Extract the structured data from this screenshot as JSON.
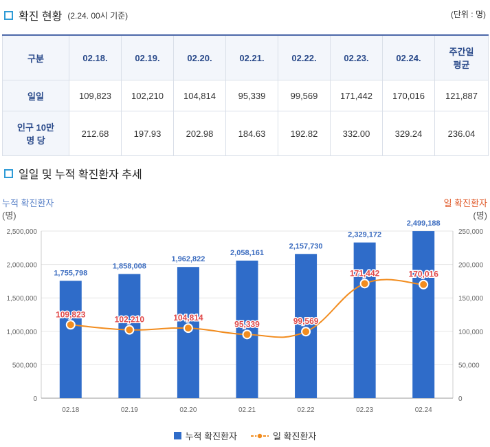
{
  "section1": {
    "title": "확진 현황",
    "subtitle": "(2.24. 00시 기준)",
    "unit": "(단위 : 명)"
  },
  "table": {
    "headers": [
      "구분",
      "02.18.",
      "02.19.",
      "02.20.",
      "02.21.",
      "02.22.",
      "02.23.",
      "02.24.",
      "주간일\n평균"
    ],
    "rows": [
      {
        "label": "일일",
        "cells": [
          "109,823",
          "102,210",
          "104,814",
          "95,339",
          "99,569",
          "171,442",
          "170,016",
          "121,887"
        ]
      },
      {
        "label": "인구 10만\n명 당",
        "cells": [
          "212.68",
          "197.93",
          "202.98",
          "184.63",
          "192.82",
          "332.00",
          "329.24",
          "236.04"
        ]
      }
    ]
  },
  "section2": {
    "title": "일일 및 누적 확진환자 추세"
  },
  "chart_data": {
    "type": "bar",
    "categories": [
      "02.18",
      "02.19",
      "02.20",
      "02.21",
      "02.22",
      "02.23",
      "02.24"
    ],
    "series": [
      {
        "name": "누적 확진환자",
        "type": "bar",
        "axis": "left",
        "values": [
          1755798,
          1858008,
          1962822,
          2058161,
          2157730,
          2329172,
          2499188
        ],
        "labels": [
          "1,755,798",
          "1,858,008",
          "1,962,822",
          "2,058,161",
          "2,157,730",
          "2,329,172",
          "2,499,188"
        ],
        "color": "#2f6cc9"
      },
      {
        "name": "일 확진환자",
        "type": "line",
        "axis": "right",
        "values": [
          109823,
          102210,
          104814,
          95339,
          99569,
          171442,
          170016
        ],
        "labels": [
          "109,823",
          "102,210",
          "104,814",
          "95,339",
          "99,569",
          "171,442",
          "170,016"
        ],
        "color": "#f28c1e"
      }
    ],
    "y_left": {
      "label": "누적 확진환자",
      "unit": "(명)",
      "range": [
        0,
        2500000
      ],
      "ticks": [
        "0",
        "500,000",
        "1,000,000",
        "1,500,000",
        "2,000,000",
        "2,500,000"
      ]
    },
    "y_right": {
      "label": "일 확진환자",
      "unit": "(명)",
      "range": [
        0,
        250000
      ],
      "ticks": [
        "0",
        "50,000",
        "100,000",
        "150,000",
        "200,000",
        "250,000"
      ]
    },
    "grid": true,
    "legend_position": "bottom"
  },
  "colors": {
    "accent": "#2e9bd6",
    "bar": "#2f6cc9",
    "line": "#f28c1e",
    "line_label": "#e04848",
    "bar_label": "#3a6bbf"
  }
}
